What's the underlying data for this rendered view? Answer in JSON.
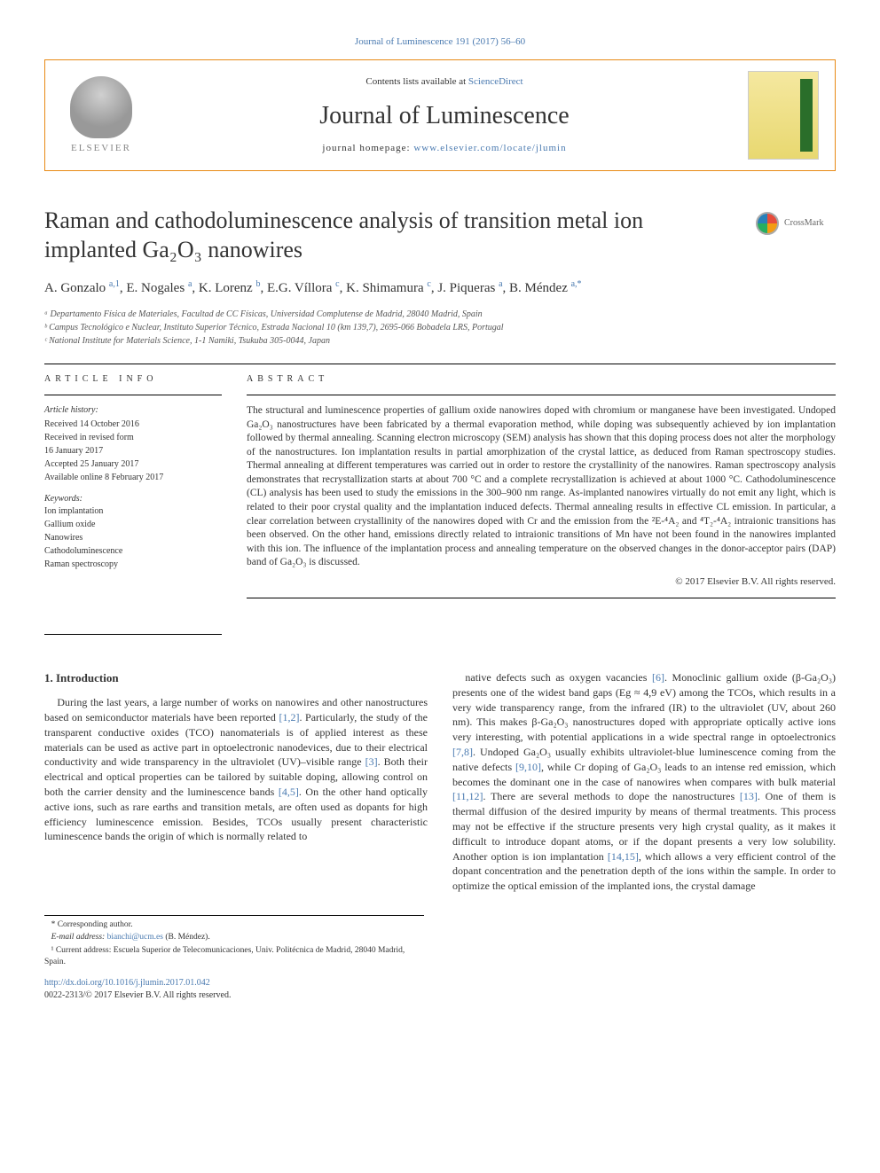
{
  "top_link": "Journal of Luminescence 191 (2017) 56–60",
  "header": {
    "lists_text_prefix": "Contents lists available at ",
    "lists_link": "ScienceDirect",
    "journal_name": "Journal of Luminescence",
    "homepage_label": "journal homepage: ",
    "homepage_url": "www.elsevier.com/locate/jlumin",
    "publisher": "ELSEVIER"
  },
  "crossmark_label": "CrossMark",
  "title": "Raman and cathodoluminescence analysis of transition metal ion implanted Ga₂O₃ nanowires",
  "authors_html": "A. Gonzalo <sup>a,1</sup>, E. Nogales <sup>a</sup>, K. Lorenz <sup>b</sup>, E.G. Víllora <sup>c</sup>, K. Shimamura <sup>c</sup>, J. Piqueras <sup>a</sup>, B. Méndez <sup>a,*</sup>",
  "affiliations": [
    "ᵃ Departamento Física de Materiales, Facultad de CC Físicas, Universidad Complutense de Madrid, 28040 Madrid, Spain",
    "ᵇ Campus Tecnológico e Nuclear, Instituto Superior Técnico, Estrada Nacional 10 (km 139,7), 2695-066 Bobadela LRS, Portugal",
    "ᶜ National Institute for Materials Science, 1-1 Namiki, Tsukuba 305-0044, Japan"
  ],
  "info": {
    "section_label": "ARTICLE INFO",
    "history_label": "Article history:",
    "history": [
      "Received 14 October 2016",
      "Received in revised form",
      "16 January 2017",
      "Accepted 25 January 2017",
      "Available online 8 February 2017"
    ],
    "keywords_label": "Keywords:",
    "keywords": [
      "Ion implantation",
      "Gallium oxide",
      "Nanowires",
      "Cathodoluminescence",
      "Raman spectroscopy"
    ]
  },
  "abstract": {
    "section_label": "ABSTRACT",
    "text": "The structural and luminescence properties of gallium oxide nanowires doped with chromium or manganese have been investigated. Undoped Ga₂O₃ nanostructures have been fabricated by a thermal evaporation method, while doping was subsequently achieved by ion implantation followed by thermal annealing. Scanning electron microscopy (SEM) analysis has shown that this doping process does not alter the morphology of the nanostructures. Ion implantation results in partial amorphization of the crystal lattice, as deduced from Raman spectroscopy studies. Thermal annealing at different temperatures was carried out in order to restore the crystallinity of the nanowires. Raman spectroscopy analysis demonstrates that recrystallization starts at about 700 °C and a complete recrystallization is achieved at about 1000 °C. Cathodoluminescence (CL) analysis has been used to study the emissions in the 300–900 nm range. As-implanted nanowires virtually do not emit any light, which is related to their poor crystal quality and the implantation induced defects. Thermal annealing results in effective CL emission. In particular, a clear correlation between crystallinity of the nanowires doped with Cr and the emission from the ²E-⁴A₂ and ⁴T₂-⁴A₂ intraionic transitions has been observed. On the other hand, emissions directly related to intraionic transitions of Mn have not been found in the nanowires implanted with this ion. The influence of the implantation process and annealing temperature on the observed changes in the donor-acceptor pairs (DAP) band of Ga₂O₃ is discussed.",
    "copyright": "© 2017 Elsevier B.V. All rights reserved."
  },
  "intro": {
    "heading": "1. Introduction",
    "col1": "During the last years, a large number of works on nanowires and other nanostructures based on semiconductor materials have been reported [1,2]. Particularly, the study of the transparent conductive oxides (TCO) nanomaterials is of applied interest as these materials can be used as active part in optoelectronic nanodevices, due to their electrical conductivity and wide transparency in the ultraviolet (UV)–visible range [3]. Both their electrical and optical properties can be tailored by suitable doping, allowing control on both the carrier density and the luminescence bands [4,5]. On the other hand optically active ions, such as rare earths and transition metals, are often used as dopants for high efficiency luminescence emission. Besides, TCOs usually present characteristic luminescence bands the origin of which is normally related to",
    "col2": "native defects such as oxygen vacancies [6]. Monoclinic gallium oxide (β-Ga₂O₃) presents one of the widest band gaps (Eg ≈ 4,9 eV) among the TCOs, which results in a very wide transparency range, from the infrared (IR) to the ultraviolet (UV, about 260 nm). This makes β-Ga₂O₃ nanostructures doped with appropriate optically active ions very interesting, with potential applications in a wide spectral range in optoelectronics [7,8]. Undoped Ga₂O₃ usually exhibits ultraviolet-blue luminescence coming from the native defects [9,10], while Cr doping of Ga₂O₃ leads to an intense red emission, which becomes the dominant one in the case of nanowires when compares with bulk material [11,12]. There are several methods to dope the nanostructures [13]. One of them is thermal diffusion of the desired impurity by means of thermal treatments. This process may not be effective if the structure presents very high crystal quality, as it makes it difficult to introduce dopant atoms, or if the dopant presents a very low solubility. Another option is ion implantation [14,15], which allows a very efficient control of the dopant concentration and the penetration depth of the ions within the sample. In order to optimize the optical emission of the implanted ions, the crystal damage"
  },
  "footer": {
    "corresponding": "* Corresponding author.",
    "email_label": "E-mail address: ",
    "email": "bianchi@ucm.es",
    "email_suffix": " (B. Méndez).",
    "note1": "¹ Current address: Escuela Superior de Telecomunicaciones, Univ. Politécnica de Madrid, 28040 Madrid, Spain.",
    "doi": "http://dx.doi.org/10.1016/j.jlumin.2017.01.042",
    "issn": "0022-2313/© 2017 Elsevier B.V. All rights reserved."
  },
  "colors": {
    "link": "#4a7ab0",
    "header_border": "#e88a15",
    "divider": "#000000"
  }
}
